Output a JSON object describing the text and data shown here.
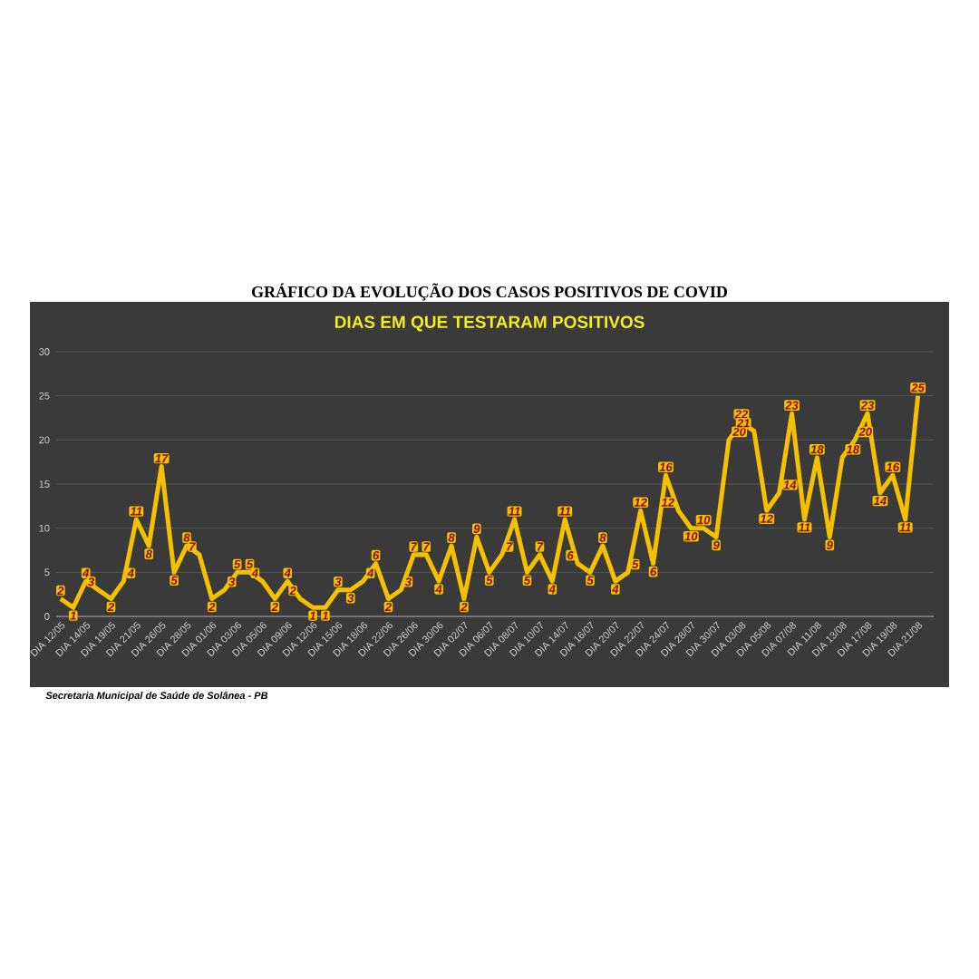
{
  "chart_data": {
    "type": "line",
    "title": "GRÁFICO DA EVOLUÇÃO DOS CASOS POSITIVOS DE COVID",
    "subtitle": "DIAS EM QUE TESTARAM POSITIVOS",
    "annotations": [
      "Secretaria Municipal de Saúde de Solânea - PB"
    ],
    "categories": [
      "DIA 12/05",
      null,
      "DIA 14/05",
      null,
      "DIA 19/05",
      null,
      "DIA 21/05",
      null,
      "DIA 26/05",
      null,
      "DIA 28/05",
      null,
      "DIA 01/06",
      null,
      "DIA 03/06",
      null,
      "DIA 05/06",
      null,
      "DIA 09/06",
      null,
      "DIA 12/06",
      null,
      "DIA 15/06",
      null,
      "DIA 18/06",
      null,
      "DIA 22/06",
      null,
      "DIA 26/06",
      null,
      "DIA 30/06",
      null,
      "DIA 02/07",
      null,
      "DIA 06/07",
      null,
      "DIA 08/07",
      null,
      "DIA 10/07",
      null,
      "DIA 14/07",
      null,
      "DIA 16/07",
      null,
      "DIA 20/07",
      null,
      "DIA 22/07",
      null,
      "DIA 24/07",
      null,
      "DIA 28/07",
      null,
      "DIA 30/07",
      null,
      "DIA 03/08",
      null,
      "DIA 05/08",
      null,
      "DIA 07/08",
      null,
      "DIA 11/08",
      null,
      "DIA 13/08",
      null,
      "DIA 17/08",
      null,
      "DIA 19/08",
      null,
      "DIA 21/08"
    ],
    "values": [
      2,
      1,
      4,
      3,
      2,
      4,
      11,
      8,
      17,
      5,
      8,
      7,
      2,
      3,
      5,
      5,
      4,
      2,
      4,
      2,
      1,
      1,
      3,
      3,
      4,
      6,
      2,
      3,
      7,
      7,
      4,
      8,
      2,
      9,
      5,
      7,
      11,
      5,
      7,
      4,
      11,
      6,
      5,
      8,
      4,
      5,
      12,
      6,
      16,
      12,
      10,
      10,
      9,
      20,
      22,
      21,
      12,
      14,
      23,
      11,
      18,
      9,
      18,
      20,
      23,
      14,
      16,
      11,
      25
    ],
    "color": "#f5c000",
    "ylim": [
      0,
      30
    ],
    "yticks": [
      0,
      5,
      10,
      15,
      20,
      25,
      30
    ],
    "grid": "y",
    "data_labels": true
  }
}
